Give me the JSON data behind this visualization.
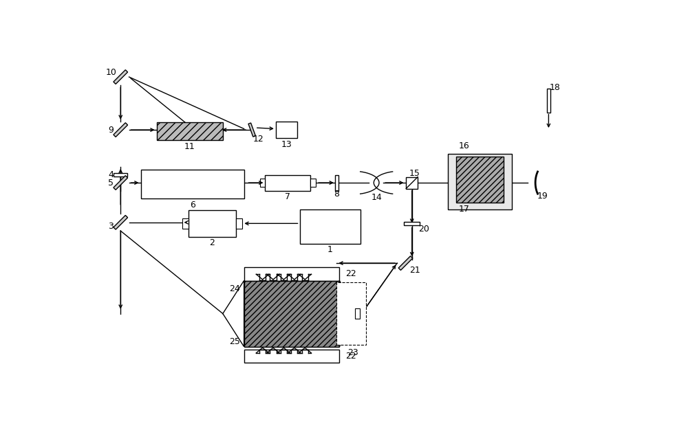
{
  "bg_color": "#ffffff",
  "line_color": "#000000",
  "fig_width": 10.0,
  "fig_height": 6.45,
  "dpi": 100,
  "xlim": [
    0,
    1000
  ],
  "ylim": [
    0,
    645
  ]
}
